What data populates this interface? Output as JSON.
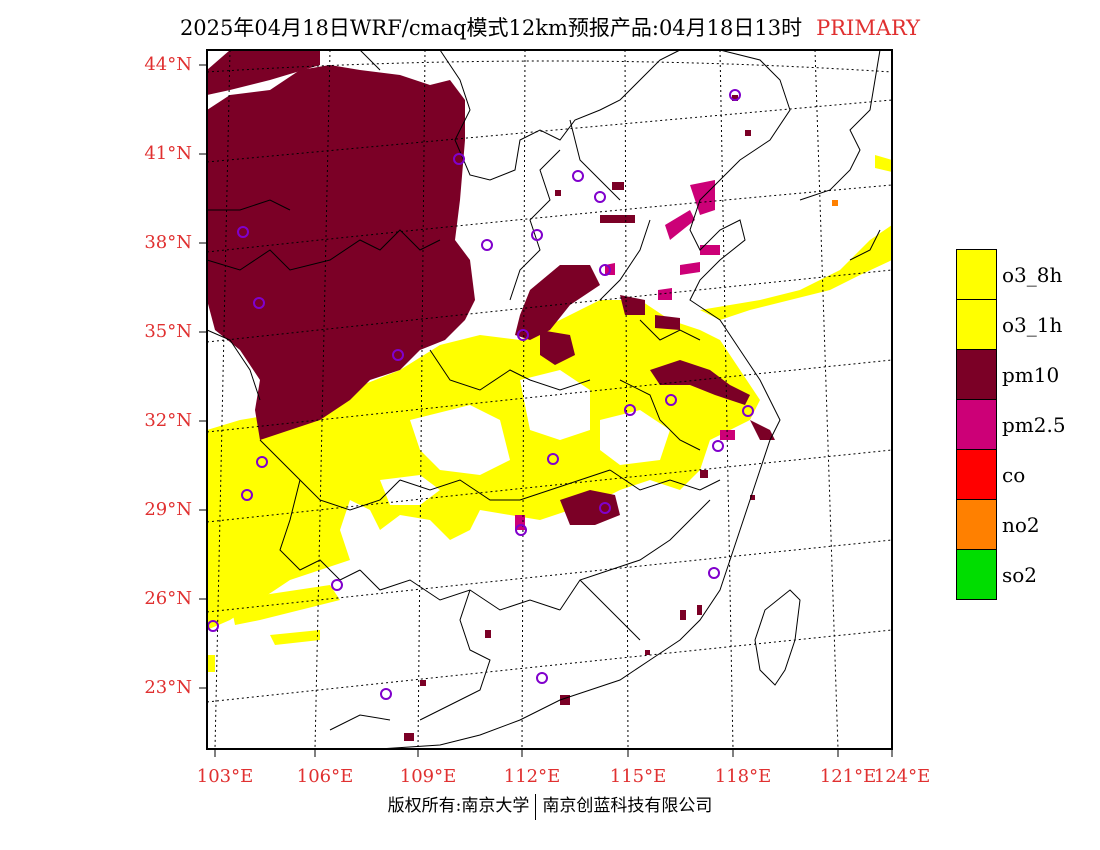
{
  "title": {
    "main": "2025年04月18日WRF/cmaq模式12km预报产品:04月18日13时",
    "tag": "PRIMARY"
  },
  "lat_labels": [
    "44°N",
    "41°N",
    "38°N",
    "35°N",
    "32°N",
    "29°N",
    "26°N",
    "23°N"
  ],
  "lon_labels": [
    "103°E",
    "106°E",
    "109°E",
    "112°E",
    "115°E",
    "118°E",
    "121°E",
    "124°E"
  ],
  "legend": [
    {
      "label": "o3_8h",
      "color": "#ffff00"
    },
    {
      "label": "o3_1h",
      "color": "#ffff00"
    },
    {
      "label": "pm10",
      "color": "#7b0026"
    },
    {
      "label": "pm2.5",
      "color": "#cc0077"
    },
    {
      "label": "co",
      "color": "#ff0000"
    },
    {
      "label": "no2",
      "color": "#ff8000"
    },
    {
      "label": "so2",
      "color": "#00dd00"
    }
  ],
  "footer": {
    "left": "版权所有:南京大学",
    "right": "南京创蓝科技有限公司"
  },
  "colors": {
    "accent_red": "#e03030",
    "pm10": "#7b0026",
    "pm25": "#cc0077",
    "o3": "#ffff00",
    "station_marker": "#8000cc"
  }
}
